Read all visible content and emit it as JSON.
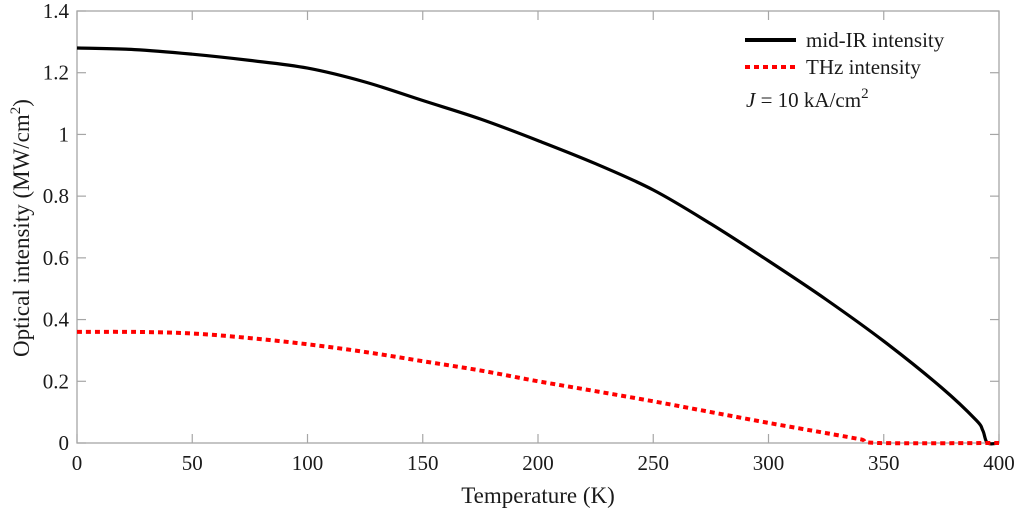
{
  "chart_data": {
    "type": "line",
    "title": "",
    "xlabel": "Temperature (K)",
    "ylabel": "Optical intensity (MW/cm",
    "ylabel_sup": "2",
    "ylabel_close": ")",
    "xlim": [
      0,
      400
    ],
    "ylim": [
      0,
      1.4
    ],
    "grid": false,
    "legend_position": "upper right",
    "xticks": [
      0,
      50,
      100,
      150,
      200,
      250,
      300,
      350,
      400
    ],
    "xtick_labels": [
      "0",
      "50",
      "100",
      "150",
      "200",
      "250",
      "300",
      "350",
      "400"
    ],
    "yticks": [
      0,
      0.2,
      0.4,
      0.6,
      0.8,
      1.0,
      1.2,
      1.4
    ],
    "ytick_labels": [
      "0",
      "0.2",
      "0.4",
      "0.6",
      "0.8",
      "1",
      "1.2",
      "1.4"
    ],
    "series": [
      {
        "name": "mid-IR intensity",
        "color": "#000000",
        "style": "solid",
        "x": [
          0,
          25,
          50,
          75,
          100,
          125,
          150,
          175,
          200,
          225,
          250,
          275,
          300,
          325,
          350,
          375,
          390,
          393,
          395,
          400
        ],
        "values": [
          1.28,
          1.275,
          1.26,
          1.24,
          1.215,
          1.17,
          1.11,
          1.05,
          0.98,
          0.905,
          0.82,
          0.71,
          0.59,
          0.465,
          0.33,
          0.18,
          0.075,
          0.04,
          0.0,
          0.0
        ]
      },
      {
        "name": "THz intensity",
        "color": "#ff0000",
        "style": "dotted",
        "x": [
          0,
          25,
          50,
          75,
          100,
          125,
          150,
          175,
          200,
          225,
          250,
          275,
          300,
          325,
          340,
          348,
          400
        ],
        "values": [
          0.36,
          0.36,
          0.355,
          0.34,
          0.32,
          0.295,
          0.265,
          0.235,
          0.2,
          0.168,
          0.135,
          0.1,
          0.065,
          0.032,
          0.012,
          0.0,
          0.0
        ]
      }
    ],
    "annotations": [
      {
        "text_italic": "J",
        "text": " = 10 kA/cm",
        "sup": "2"
      }
    ]
  },
  "legend": {
    "items": [
      {
        "label": "mid-IR intensity",
        "color": "#000000",
        "style": "solid"
      },
      {
        "label": "THz intensity",
        "color": "#ff0000",
        "style": "dotted"
      }
    ],
    "annotation": {
      "italic": "J",
      "text": " = 10 kA/cm",
      "sup": "2"
    }
  },
  "colors": {
    "axis": "#a6a6a6",
    "text": "#1a1a1a"
  }
}
